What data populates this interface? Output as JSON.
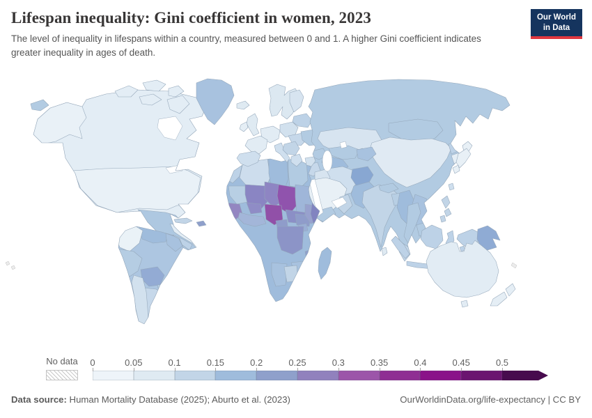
{
  "header": {
    "title": "Lifespan inequality: Gini coefficient in women, 2023",
    "subtitle": "The level of inequality in lifespans within a country, measured between 0 and 1. A higher Gini coefficient indicates greater inequality in ages of death.",
    "logo": {
      "line1": "Our World",
      "line2": "in Data",
      "bg_color": "#15345e",
      "accent_color": "#e0373f"
    }
  },
  "legend": {
    "no_data_label": "No data",
    "tick_labels": [
      "0",
      "0.05",
      "0.1",
      "0.15",
      "0.2",
      "0.25",
      "0.3",
      "0.35",
      "0.4",
      "0.45",
      "0.5"
    ],
    "band_colors": [
      "#eef4f9",
      "#dfeaf2",
      "#c2d5e7",
      "#9fbcdc",
      "#8fa0cb",
      "#9181bd",
      "#9c55a9",
      "#8f2e93",
      "#8a1389",
      "#6b1570",
      "#470b4e"
    ]
  },
  "footer": {
    "source_label": "Data source:",
    "source_text": " Human Mortality Database (2025); Aburto et al. (2023)",
    "right_text": "OurWorldinData.org/life-expectancy | CC BY"
  },
  "chart_data": {
    "type": "choropleth_map",
    "title": "Lifespan inequality: Gini coefficient in women, 2023",
    "unit": "Gini coefficient (0–1)",
    "projection": "world",
    "scale": {
      "min": 0,
      "max": 0.5,
      "step": 0.05,
      "open_ended_top": true,
      "colors": [
        "#eef4f9",
        "#dfeaf2",
        "#c2d5e7",
        "#9fbcdc",
        "#8fa0cb",
        "#9181bd",
        "#9c55a9",
        "#8f2e93",
        "#8a1389",
        "#6b1570",
        "#470b4e"
      ]
    },
    "regions": {
      "canada": {
        "color": "#e3edf5",
        "band": "0.05–0.1"
      },
      "united_states": {
        "color": "#e9f1f7",
        "band": "0.05–0.1"
      },
      "greenland": {
        "color": "#a8c2df",
        "band": "0.15–0.2"
      },
      "mexico": {
        "color": "#aec8e1",
        "band": "0.1–0.15"
      },
      "central_america": {
        "color": "#bdd2e7",
        "band": "0.1–0.15"
      },
      "cuba": {
        "color": "#c2d5e7",
        "band": "0.1–0.15"
      },
      "haiti_dominican_republic": {
        "color": "#8f9fcb",
        "band": "0.2–0.25"
      },
      "colombia": {
        "color": "#eaf2f7",
        "band": "0–0.05"
      },
      "venezuela": {
        "color": "#9fbcdc",
        "band": "0.15–0.2"
      },
      "guyanas": {
        "color": "#a8c2df",
        "band": "0.15–0.2"
      },
      "brazil": {
        "color": "#adc6e1",
        "band": "0.1–0.15"
      },
      "peru_ecuador": {
        "color": "#b5cde3",
        "band": "0.1–0.15"
      },
      "bolivia": {
        "color": "#93abd4",
        "band": "0.2–0.25"
      },
      "paraguay": {
        "color": "#b5cde3",
        "band": "0.1–0.15"
      },
      "chile": {
        "color": "#d2e1ee",
        "band": "0.05–0.1"
      },
      "argentina": {
        "color": "#c6d8ea",
        "band": "0.1–0.15"
      },
      "iceland": {
        "color": "#dfeaf2",
        "band": "0.05–0.1"
      },
      "united_kingdom": {
        "color": "#dfeaf2",
        "band": "0.05–0.1"
      },
      "ireland": {
        "color": "#e5eef5",
        "band": "0.05–0.1"
      },
      "norway_sweden": {
        "color": "#dce8f1",
        "band": "0.05–0.1"
      },
      "finland": {
        "color": "#d7e4f0",
        "band": "0.05–0.1"
      },
      "france": {
        "color": "#e2ecf4",
        "band": "0.05–0.1"
      },
      "germany_central_europe": {
        "color": "#e2ecf4",
        "band": "0.05–0.1"
      },
      "spain_portugal": {
        "color": "#cfdfee",
        "band": "0.05–0.1"
      },
      "italy": {
        "color": "#cfdfee",
        "band": "0.05–0.1"
      },
      "poland_czechia": {
        "color": "#d2e1ee",
        "band": "0.05–0.1"
      },
      "romania_hungary": {
        "color": "#c6d8ea",
        "band": "0.1–0.15"
      },
      "balkans": {
        "color": "#c2d5e7",
        "band": "0.1–0.15"
      },
      "greece": {
        "color": "#cfdfee",
        "band": "0.05–0.1"
      },
      "ukraine": {
        "color": "#b2cbe2",
        "band": "0.1–0.15"
      },
      "belarus_baltics": {
        "color": "#bdd2e7",
        "band": "0.1–0.15"
      },
      "turkey": {
        "color": "#d2e1ee",
        "band": "0.05–0.1"
      },
      "russia": {
        "color": "#b2cbe2",
        "band": "0.1–0.15"
      },
      "kazakhstan": {
        "color": "#d7e4f0",
        "band": "0.05–0.1"
      },
      "caucasus": {
        "color": "#b2cbe2",
        "band": "0.1–0.15"
      },
      "uzbekistan": {
        "color": "#b2cbe2",
        "band": "0.1–0.15"
      },
      "turkmenistan": {
        "color": "#9fbcdc",
        "band": "0.15–0.2"
      },
      "kyrgyzstan_tajikistan": {
        "color": "#a8c2df",
        "band": "0.15–0.2"
      },
      "iran": {
        "color": "#cfdfee",
        "band": "0.05–0.1"
      },
      "iraq": {
        "color": "#d7e4f0",
        "band": "0.05–0.1"
      },
      "syria_levant": {
        "color": "#c6d8ea",
        "band": "0.1–0.15"
      },
      "saudi_arabia": {
        "color": "#e8f0f6",
        "band": "0.05–0.1"
      },
      "yemen": {
        "color": "#b2cbe2",
        "band": "0.1–0.15"
      },
      "oman": {
        "color": "#c2d5e7",
        "band": "0.1–0.15"
      },
      "afghanistan": {
        "color": "#88a7d2",
        "band": "0.2–0.25"
      },
      "pakistan": {
        "color": "#9fbcdc",
        "band": "0.15–0.2"
      },
      "india": {
        "color": "#c2d5e7",
        "band": "0.1–0.15"
      },
      "nepal_bhutan": {
        "color": "#b2cbe2",
        "band": "0.1–0.15"
      },
      "bangladesh": {
        "color": "#b8cfe4",
        "band": "0.1–0.15"
      },
      "sri_lanka": {
        "color": "#dfeaf2",
        "band": "0.05–0.1"
      },
      "china": {
        "color": "#e0eaf3",
        "band": "0.05–0.1"
      },
      "mongolia": {
        "color": "#b2cbe2",
        "band": "0.1–0.15"
      },
      "north_korea": {
        "color": "#bdd2e7",
        "band": "0.1–0.15"
      },
      "south_korea": {
        "color": "#e5eef5",
        "band": "0.05–0.1"
      },
      "japan": {
        "color": "#e8f0f6",
        "band": "0.05–0.1"
      },
      "taiwan": {
        "color": "#cfdfee",
        "band": "0.1–0.15"
      },
      "myanmar": {
        "color": "#9fbcdc",
        "band": "0.15–0.2"
      },
      "thailand": {
        "color": "#b2cbe2",
        "band": "0.1–0.15"
      },
      "vietnam_laos": {
        "color": "#a8c2df",
        "band": "0.15–0.2"
      },
      "cambodia": {
        "color": "#b2cbe2",
        "band": "0.1–0.15"
      },
      "malaysia": {
        "color": "#c2d5e7",
        "band": "0.1–0.15"
      },
      "indonesia": {
        "color": "#bdd2e7",
        "band": "0.1–0.15"
      },
      "philippines": {
        "color": "#c2d5e7",
        "band": "0.1–0.15"
      },
      "papua_new_guinea": {
        "color": "#8fabd4",
        "band": "0.2–0.25"
      },
      "australia": {
        "color": "#e2ecf4",
        "band": "0.05–0.1"
      },
      "new_zealand": {
        "color": "#e5eef5",
        "band": "0.05–0.1"
      },
      "morocco": {
        "color": "#bdd2e7",
        "band": "0.1–0.15"
      },
      "algeria": {
        "color": "#cddded",
        "band": "0.1–0.15"
      },
      "libya": {
        "color": "#9fbcdc",
        "band": "0.15–0.2"
      },
      "egypt": {
        "color": "#b2cbe2",
        "band": "0.1–0.15"
      },
      "mauritania": {
        "color": "#b8cfe4",
        "band": "0.1–0.15"
      },
      "mali": {
        "color": "#8a85c3",
        "band": "0.25–0.3"
      },
      "niger": {
        "color": "#8e85c3",
        "band": "0.25–0.3"
      },
      "chad": {
        "color": "#9053ad",
        "band": "0.3–0.35"
      },
      "sudan": {
        "color": "#9fb6d9",
        "band": "0.15–0.2"
      },
      "senegal_guinea": {
        "color": "#9386c1",
        "band": "0.25–0.3"
      },
      "burkina_faso": {
        "color": "#8f8cc6",
        "band": "0.25–0.3"
      },
      "west_africa_coast": {
        "color": "#a3b6d9",
        "band": "0.2–0.25"
      },
      "nigeria": {
        "color": "#9150a8",
        "band": "0.3–0.35"
      },
      "cameroon": {
        "color": "#8f9cca",
        "band": "0.2–0.25"
      },
      "central_african_republic": {
        "color": "#8b8fc6",
        "band": "0.25–0.3"
      },
      "south_sudan": {
        "color": "#8f9cca",
        "band": "0.25–0.3"
      },
      "ethiopia": {
        "color": "#98a1ce",
        "band": "0.2–0.25"
      },
      "somalia": {
        "color": "#8184c0",
        "band": "0.25–0.3"
      },
      "drc": {
        "color": "#8c94c7",
        "band": "0.25–0.3"
      },
      "uganda": {
        "color": "#9aaed5",
        "band": "0.2–0.25"
      },
      "east_southern_africa": {
        "color": "#9fbcdc",
        "band": "0.15–0.2"
      },
      "zimbabwe": {
        "color": "#a8c2df",
        "band": "0.15–0.2"
      },
      "namibia": {
        "color": "#a8c2df",
        "band": "0.15–0.2"
      },
      "botswana": {
        "color": "#c2d5e7",
        "band": "0.1–0.15"
      },
      "lesotho": {
        "color": "#8f9fcb",
        "band": "0.2–0.25"
      },
      "malawi": {
        "color": "#8fa0cb",
        "band": "0.2–0.25"
      },
      "madagascar": {
        "color": "#9fbcdc",
        "band": "0.15–0.2"
      },
      "no_data_islands": {
        "color": "#ececec",
        "band": "no data"
      }
    }
  }
}
